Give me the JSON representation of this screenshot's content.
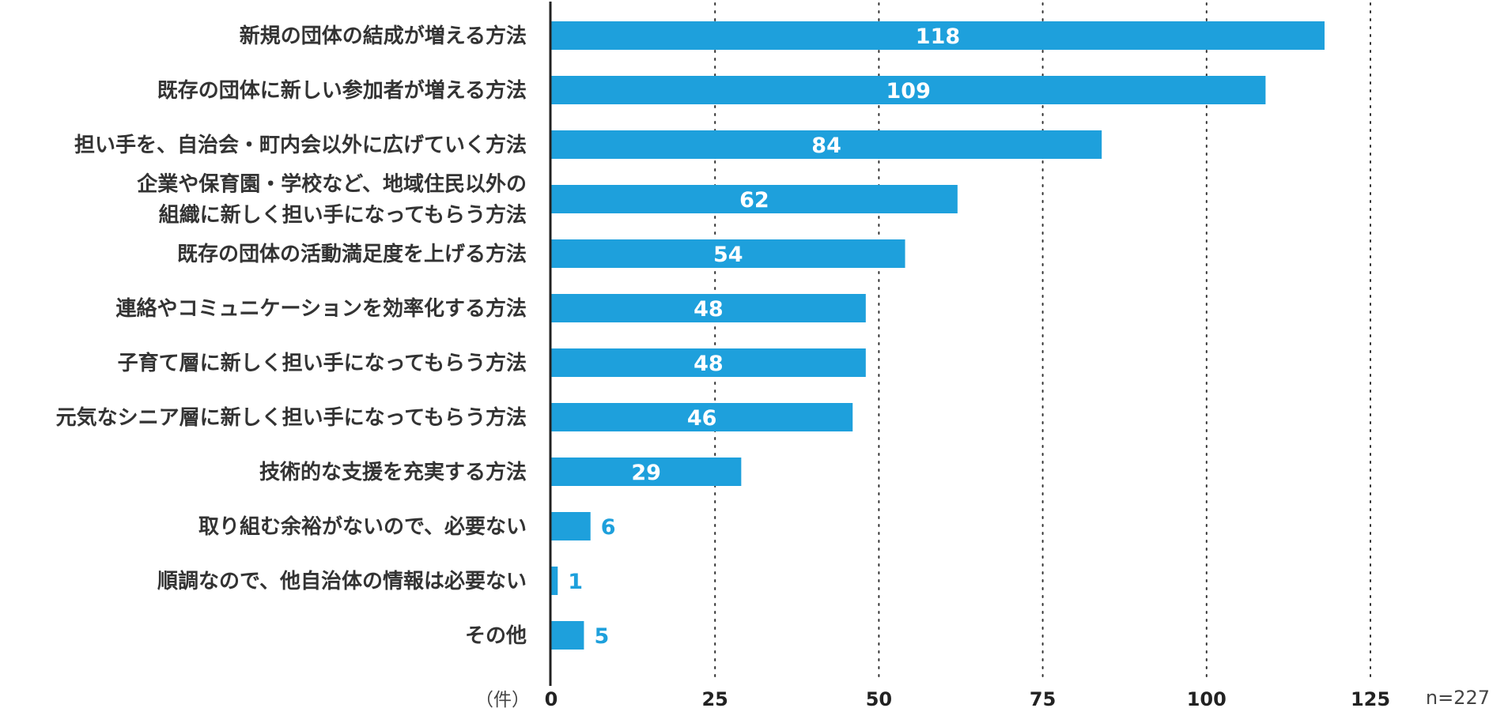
{
  "chart_data": {
    "type": "bar",
    "orientation": "horizontal",
    "categories": [
      [
        "新規の団体の結成が増える方法"
      ],
      [
        "既存の団体に新しい参加者が増える方法"
      ],
      [
        "担い手を、自治会・町内会以外に広げていく方法"
      ],
      [
        "企業や保育園・学校など、地域住民以外の",
        "組織に新しく担い手になってもらう方法"
      ],
      [
        "既存の団体の活動満足度を上げる方法"
      ],
      [
        "連絡やコミュニケーションを効率化する方法"
      ],
      [
        "子育て層に新しく担い手になってもらう方法"
      ],
      [
        "元気なシニア層に新しく担い手になってもらう方法"
      ],
      [
        "技術的な支援を充実する方法"
      ],
      [
        "取り組む余裕がないので、必要ない"
      ],
      [
        "順調なので、他自治体の情報は必要ない"
      ],
      [
        "その他"
      ]
    ],
    "values": [
      118,
      109,
      84,
      62,
      54,
      48,
      48,
      46,
      29,
      6,
      1,
      5
    ],
    "xlim": [
      0,
      125
    ],
    "xticks": [
      0,
      25,
      50,
      75,
      100,
      125
    ],
    "xlabel": "（件）",
    "note": "n=227",
    "bar_color": "#1ea0dc",
    "label_color_inside": "#ffffff",
    "label_color_outside": "#1ea0dc",
    "text_color": "#333333",
    "grid": "dotted"
  }
}
